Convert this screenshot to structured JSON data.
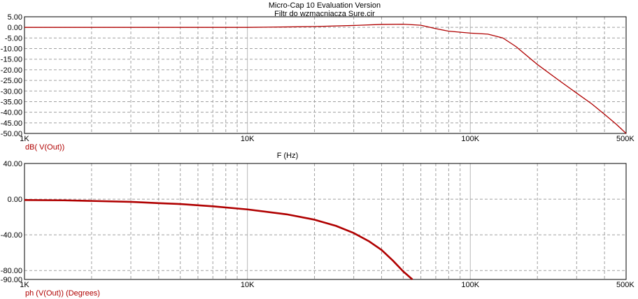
{
  "header": {
    "app_title": "Micro-Cap 10 Evaluation Version",
    "file_title": "Filtr do wzmacniacza Sure.cir"
  },
  "colors": {
    "trace": "#b00000",
    "axis_label": "#b00000",
    "grid": "#a0a0a0",
    "background": "#ffffff"
  },
  "chart_data": [
    {
      "type": "line",
      "title": "",
      "xlabel": "F (Hz)",
      "ylabel": "dB( V(Out))",
      "x_scale": "log",
      "xlim": [
        1000,
        500000
      ],
      "ylim": [
        -50,
        5
      ],
      "grid": true,
      "x_ticks": [
        {
          "value": 1000,
          "label": "1K"
        },
        {
          "value": 10000,
          "label": "10K"
        },
        {
          "value": 100000,
          "label": "100K"
        },
        {
          "value": 500000,
          "label": "500K"
        }
      ],
      "y_ticks": [
        {
          "value": 5,
          "label": "5.00"
        },
        {
          "value": 0,
          "label": "0.00"
        },
        {
          "value": -5,
          "label": "-5.00"
        },
        {
          "value": -10,
          "label": "-10.00"
        },
        {
          "value": -15,
          "label": "-15.00"
        },
        {
          "value": -20,
          "label": "-20.00"
        },
        {
          "value": -25,
          "label": "-25.00"
        },
        {
          "value": -30,
          "label": "-30.00"
        },
        {
          "value": -35,
          "label": "-35.00"
        },
        {
          "value": -40,
          "label": "-40.00"
        },
        {
          "value": -45,
          "label": "-45.00"
        },
        {
          "value": -50,
          "label": "-50.00"
        }
      ],
      "series": [
        {
          "x": [
            1000,
            3000,
            5000,
            8000,
            10000,
            15000,
            20000,
            30000,
            40000,
            50000,
            60000,
            70000,
            80000,
            100000,
            120000,
            140000,
            160000,
            200000,
            250000,
            300000,
            350000,
            400000,
            450000,
            500000
          ],
          "y": [
            0,
            0,
            0,
            0,
            0,
            0.2,
            0.4,
            0.9,
            1.4,
            1.5,
            1.0,
            -0.6,
            -1.8,
            -2.7,
            -3.2,
            -5.0,
            -9.0,
            -17.5,
            -25.0,
            -31.0,
            -36.0,
            -41.0,
            -45.5,
            -50.0
          ]
        }
      ]
    },
    {
      "type": "line",
      "title": "",
      "xlabel": "F (Hz)",
      "ylabel": "ph (V(Out)) (Degrees)",
      "x_scale": "log",
      "xlim": [
        1000,
        500000
      ],
      "ylim": [
        -90,
        40
      ],
      "grid": true,
      "x_ticks": [
        {
          "value": 1000,
          "label": "1K"
        },
        {
          "value": 10000,
          "label": "10K"
        },
        {
          "value": 100000,
          "label": "100K"
        },
        {
          "value": 500000,
          "label": "500K"
        }
      ],
      "y_ticks": [
        {
          "value": 40,
          "label": "40.00"
        },
        {
          "value": 0,
          "label": "0.00"
        },
        {
          "value": -40,
          "label": "-40.00"
        },
        {
          "value": -80,
          "label": "-80.00"
        },
        {
          "value": -90,
          "label": "-90.00"
        }
      ],
      "series": [
        {
          "x": [
            1000,
            1500,
            2000,
            3000,
            4000,
            5000,
            7000,
            10000,
            15000,
            20000,
            25000,
            30000,
            35000,
            40000,
            45000,
            50000,
            55000
          ],
          "y": [
            -1,
            -1.3,
            -2,
            -3,
            -4.5,
            -5.5,
            -8,
            -11.5,
            -17,
            -23,
            -30,
            -38,
            -47,
            -57,
            -69,
            -81,
            -90
          ]
        }
      ]
    }
  ]
}
